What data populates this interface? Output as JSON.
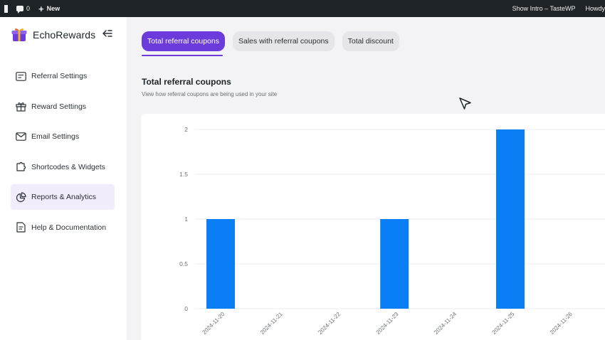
{
  "admin_bar": {
    "comments_count": "0",
    "new_label": "New",
    "site_label": "Show Intro – TasteWP",
    "howdy_label": "Howdy"
  },
  "sidebar": {
    "brand": "EchoRewards",
    "items": [
      {
        "label": "Referral Settings",
        "icon": "referral-settings-icon"
      },
      {
        "label": "Reward Settings",
        "icon": "gift-icon"
      },
      {
        "label": "Email Settings",
        "icon": "envelope-icon"
      },
      {
        "label": "Shortcodes & Widgets",
        "icon": "puzzle-icon"
      },
      {
        "label": "Reports & Analytics",
        "icon": "pie-chart-icon",
        "active": true
      },
      {
        "label": "Help & Documentation",
        "icon": "document-icon"
      }
    ]
  },
  "tabs": [
    {
      "label": "Total referral coupons",
      "active": true
    },
    {
      "label": "Sales with referral coupons",
      "active": false
    },
    {
      "label": "Total discount",
      "active": false
    }
  ],
  "section": {
    "title": "Total referral coupons",
    "subtitle": "View how referral coupons are being used in your site"
  },
  "colors": {
    "accent": "#6b3bdc",
    "bar": "#0a7ef5",
    "admin_bar": "#1d2327"
  },
  "chart_data": {
    "type": "bar",
    "categories": [
      "2024-11-20",
      "2024-11-21",
      "2024-11-22",
      "2024-11-23",
      "2024-11-24",
      "2024-11-25",
      "2024-11-26"
    ],
    "values": [
      1,
      0,
      0,
      1,
      0,
      2,
      0
    ],
    "yticks": [
      "0",
      "0.5",
      "1",
      "1.5",
      "2"
    ],
    "ylim": [
      0,
      2
    ],
    "grid": true
  }
}
